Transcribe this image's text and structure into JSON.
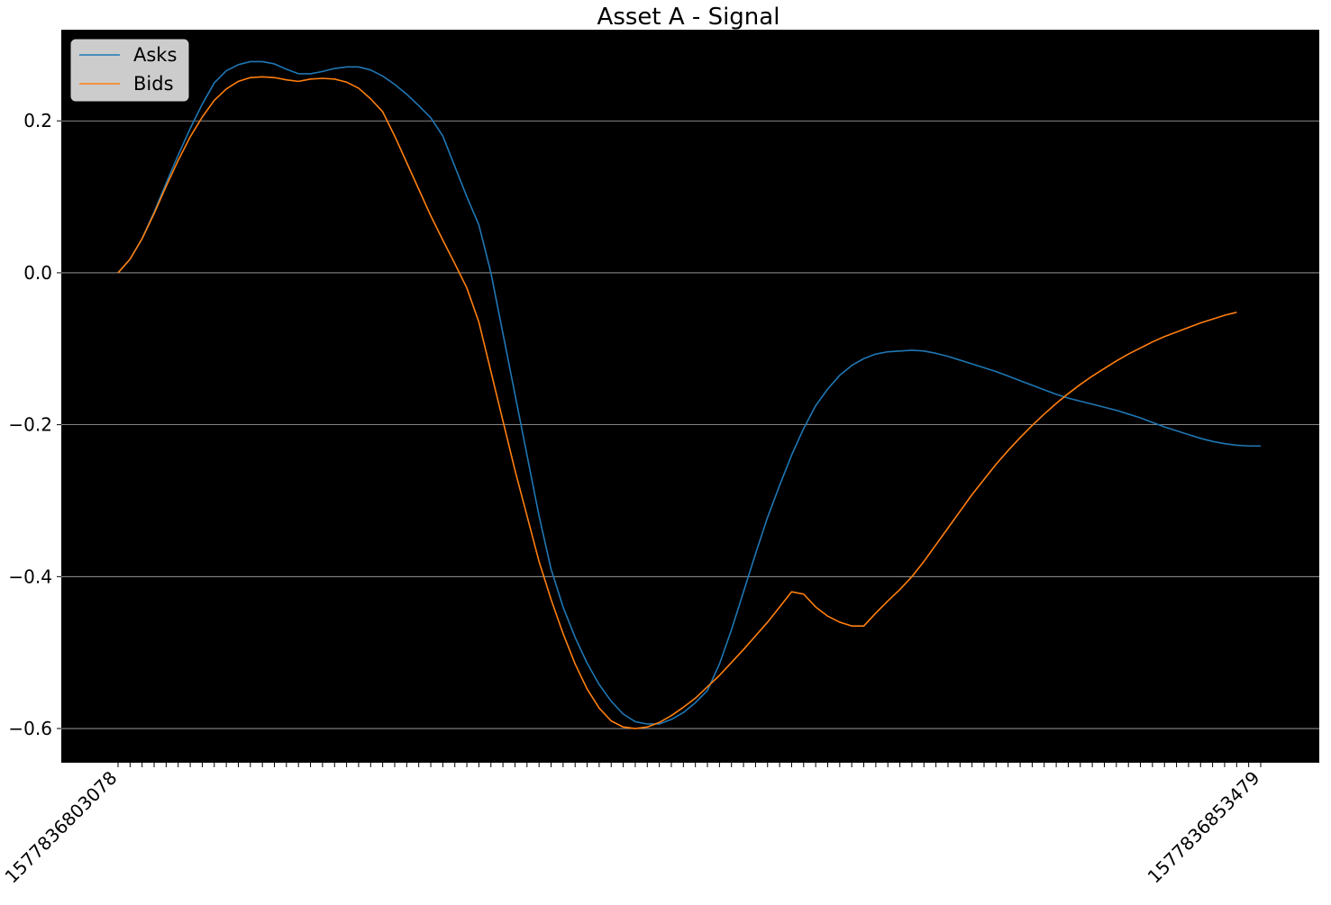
{
  "chart_data": {
    "type": "line",
    "title": "Asset A - Signal",
    "xlabel": "",
    "ylabel": "",
    "ylim": [
      -0.645,
      0.32
    ],
    "yticks": [
      "−0.6",
      "−0.4",
      "−0.2",
      "0.0",
      "0.2"
    ],
    "ytick_values": [
      -0.6,
      -0.4,
      -0.2,
      0.0,
      0.2
    ],
    "grid": "horizontal",
    "background": "#000000",
    "legend_position": "top-left",
    "x_tick_labels_shown": [
      "1577836803078",
      "1577836853479"
    ],
    "series": [
      {
        "name": "Asks",
        "color": "#1f77b4",
        "values": [
          0.0,
          0.018,
          0.045,
          0.08,
          0.118,
          0.155,
          0.19,
          0.222,
          0.25,
          0.266,
          0.274,
          0.278,
          0.278,
          0.275,
          0.268,
          0.262,
          0.262,
          0.265,
          0.269,
          0.271,
          0.271,
          0.267,
          0.259,
          0.248,
          0.235,
          0.22,
          0.204,
          0.18,
          0.14,
          0.1,
          0.063,
          0.0,
          -0.08,
          -0.16,
          -0.24,
          -0.32,
          -0.39,
          -0.44,
          -0.48,
          -0.514,
          -0.542,
          -0.564,
          -0.581,
          -0.591,
          -0.594,
          -0.594,
          -0.588,
          -0.579,
          -0.566,
          -0.55,
          -0.515,
          -0.47,
          -0.42,
          -0.37,
          -0.322,
          -0.28,
          -0.24,
          -0.205,
          -0.175,
          -0.153,
          -0.135,
          -0.122,
          -0.113,
          -0.107,
          -0.104,
          -0.103,
          -0.102,
          -0.103,
          -0.106,
          -0.11,
          -0.115,
          -0.12,
          -0.125,
          -0.13,
          -0.136,
          -0.142,
          -0.148,
          -0.154,
          -0.16,
          -0.165,
          -0.169,
          -0.173,
          -0.177,
          -0.181,
          -0.186,
          -0.191,
          -0.197,
          -0.203,
          -0.208,
          -0.213,
          -0.218,
          -0.222,
          -0.225,
          -0.227,
          -0.228,
          -0.228
        ]
      },
      {
        "name": "Bids",
        "color": "#ff7f0e",
        "values": [
          0.0,
          0.018,
          0.045,
          0.078,
          0.114,
          0.148,
          0.179,
          0.205,
          0.227,
          0.242,
          0.252,
          0.257,
          0.258,
          0.257,
          0.254,
          0.252,
          0.255,
          0.256,
          0.255,
          0.251,
          0.243,
          0.229,
          0.212,
          0.18,
          0.145,
          0.11,
          0.075,
          0.043,
          0.012,
          -0.02,
          -0.065,
          -0.13,
          -0.195,
          -0.26,
          -0.32,
          -0.38,
          -0.43,
          -0.475,
          -0.515,
          -0.548,
          -0.573,
          -0.59,
          -0.598,
          -0.6,
          -0.598,
          -0.592,
          -0.583,
          -0.572,
          -0.56,
          -0.545,
          -0.53,
          -0.513,
          -0.496,
          -0.478,
          -0.46,
          -0.44,
          -0.42,
          -0.423,
          -0.44,
          -0.452,
          -0.46,
          -0.465,
          -0.465,
          -0.448,
          -0.432,
          -0.417,
          -0.4,
          -0.38,
          -0.358,
          -0.336,
          -0.314,
          -0.292,
          -0.272,
          -0.252,
          -0.234,
          -0.217,
          -0.201,
          -0.186,
          -0.172,
          -0.159,
          -0.147,
          -0.136,
          -0.126,
          -0.116,
          -0.107,
          -0.099,
          -0.091,
          -0.084,
          -0.078,
          -0.072,
          -0.066,
          -0.061,
          -0.056,
          -0.052
        ]
      }
    ]
  }
}
